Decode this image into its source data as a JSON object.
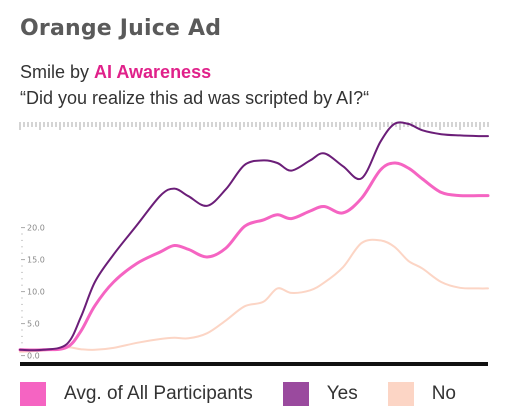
{
  "header": {
    "title": "Orange Juice Ad",
    "subtitle_prefix": "Smile by ",
    "subtitle_highlight": "AI Awareness",
    "question": "“Did you realize this ad was scripted by AI?“"
  },
  "colors": {
    "avg": "#f564c2",
    "yes": "#6b1e78",
    "no": "#fcd5c5",
    "highlight": "#e0218a",
    "axis": "#111111",
    "tick": "#aaaaaa"
  },
  "chart_data": {
    "type": "line",
    "y_ticks": [
      "0.0",
      "5.0",
      "10.0",
      "15.0",
      "20.0"
    ],
    "y_tick_values": [
      0,
      5,
      10,
      15,
      20
    ],
    "ylim": [
      -1,
      36.5
    ],
    "xlim": [
      0,
      100
    ],
    "grid": false,
    "legend_position": "bottom",
    "series": [
      {
        "key": "avg",
        "name": "Avg. of All Participants",
        "x": [
          0,
          5,
          10,
          13,
          16,
          20,
          25,
          30,
          33,
          36,
          40,
          44,
          48,
          52,
          55,
          58,
          62,
          65,
          69,
          73,
          77,
          80,
          83,
          86,
          90,
          94,
          98,
          100
        ],
        "y": [
          0.9,
          0.9,
          1.3,
          3.8,
          7.8,
          11.5,
          14.4,
          16.2,
          17.2,
          16.6,
          15.4,
          16.8,
          20.2,
          21.2,
          22.0,
          21.4,
          22.6,
          23.3,
          22.3,
          24.6,
          29.0,
          30.1,
          29.3,
          27.6,
          25.5,
          25.0,
          25.0,
          25.0
        ]
      },
      {
        "key": "yes",
        "name": "Yes",
        "x": [
          0,
          5,
          10,
          13,
          16,
          20,
          25,
          30,
          33,
          36,
          40,
          44,
          48,
          52,
          55,
          58,
          62,
          65,
          69,
          73,
          77,
          80,
          83,
          86,
          90,
          94,
          98,
          100
        ],
        "y": [
          0.9,
          0.9,
          1.8,
          6.0,
          11.5,
          15.8,
          20.4,
          25.0,
          26.1,
          24.9,
          23.4,
          26.0,
          29.8,
          30.5,
          30.1,
          28.9,
          30.5,
          31.6,
          29.6,
          27.7,
          33.4,
          36.2,
          36.2,
          35.2,
          34.6,
          34.4,
          34.3,
          34.3
        ]
      },
      {
        "key": "no",
        "name": "No",
        "x": [
          0,
          5,
          10,
          13,
          16,
          20,
          25,
          30,
          33,
          36,
          40,
          44,
          48,
          52,
          55,
          58,
          62,
          65,
          69,
          73,
          77,
          80,
          83,
          86,
          90,
          94,
          98,
          100
        ],
        "y": [
          0.6,
          0.8,
          1.3,
          1.0,
          0.9,
          1.2,
          2.0,
          2.6,
          2.8,
          2.7,
          3.5,
          5.5,
          7.7,
          8.4,
          10.5,
          9.8,
          10.2,
          11.4,
          13.8,
          17.6,
          18.0,
          17.0,
          14.8,
          13.6,
          11.5,
          10.6,
          10.5,
          10.5
        ]
      }
    ]
  },
  "legend": [
    {
      "key": "avg",
      "label": "Avg. of All Participants"
    },
    {
      "key": "yes",
      "label": "Yes"
    },
    {
      "key": "no",
      "label": "No"
    }
  ]
}
